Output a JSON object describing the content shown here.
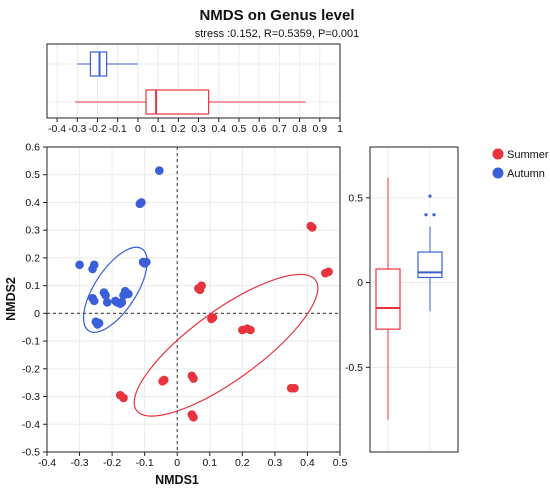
{
  "chart_data": {
    "type": "scatter",
    "title": "NMDS on Genus level",
    "subtitle": "stress :0.152, R=0.5359, P=0.001",
    "xlabel": "NMDS1",
    "ylabel": "NMDS2",
    "xlim": [
      -0.4,
      0.5
    ],
    "ylim": [
      -0.5,
      0.6
    ],
    "x_ticks": [
      "-0.4",
      "-0.3",
      "-0.2",
      "-0.1",
      "0",
      "0.1",
      "0.2",
      "0.3",
      "0.4",
      "0.5"
    ],
    "y_ticks": [
      "-0.5",
      "-0.4",
      "-0.3",
      "-0.2",
      "-0.1",
      "0",
      "0.1",
      "0.2",
      "0.3",
      "0.4",
      "0.5",
      "0.6"
    ],
    "legend_position": "top-right",
    "series": [
      {
        "name": "Summer",
        "color": "#e8333f",
        "points": [
          [
            0.41,
            0.315
          ],
          [
            0.415,
            0.31
          ],
          [
            0.455,
            0.145
          ],
          [
            0.465,
            0.15
          ],
          [
            0.075,
            0.1
          ],
          [
            0.07,
            0.085
          ],
          [
            0.065,
            0.09
          ],
          [
            0.11,
            -0.015
          ],
          [
            0.105,
            -0.02
          ],
          [
            0.2,
            -0.06
          ],
          [
            0.225,
            -0.06
          ],
          [
            0.215,
            -0.055
          ],
          [
            -0.04,
            -0.24
          ],
          [
            -0.045,
            -0.245
          ],
          [
            0.045,
            -0.225
          ],
          [
            0.05,
            -0.235
          ],
          [
            0.35,
            -0.27
          ],
          [
            0.36,
            -0.27
          ],
          [
            -0.175,
            -0.295
          ],
          [
            -0.165,
            -0.305
          ],
          [
            0.045,
            -0.365
          ],
          [
            0.05,
            -0.375
          ]
        ]
      },
      {
        "name": "Autumn",
        "color": "#3b5fd8",
        "points": [
          [
            -0.055,
            0.515
          ],
          [
            -0.115,
            0.395
          ],
          [
            -0.11,
            0.4
          ],
          [
            -0.105,
            0.185
          ],
          [
            -0.095,
            0.185
          ],
          [
            -0.1,
            0.18
          ],
          [
            -0.3,
            0.175
          ],
          [
            -0.255,
            0.175
          ],
          [
            -0.26,
            0.16
          ],
          [
            -0.16,
            0.08
          ],
          [
            -0.165,
            0.065
          ],
          [
            -0.15,
            0.07
          ],
          [
            -0.225,
            0.075
          ],
          [
            -0.22,
            0.065
          ],
          [
            -0.26,
            0.055
          ],
          [
            -0.255,
            0.045
          ],
          [
            -0.215,
            0.04
          ],
          [
            -0.19,
            0.045
          ],
          [
            -0.185,
            0.04
          ],
          [
            -0.17,
            0.04
          ],
          [
            -0.175,
            0.035
          ],
          [
            -0.25,
            -0.03
          ],
          [
            -0.245,
            -0.04
          ],
          [
            -0.24,
            -0.035
          ]
        ]
      }
    ],
    "ellipses": [
      {
        "series": "Summer",
        "center": [
          0.15,
          -0.115
        ],
        "semi_axes": [
          0.34,
          0.125
        ],
        "angle_deg": 36
      },
      {
        "series": "Autumn",
        "center": [
          -0.19,
          0.085
        ],
        "semi_axes": [
          0.15,
          0.075
        ],
        "angle_deg": 57
      }
    ],
    "top_boxplot": {
      "axis_ticks": [
        "-0.4",
        "-0.3",
        "-0.2",
        "-0.1",
        "0",
        "0.1",
        "0.2",
        "0.3",
        "0.4",
        "0.5",
        "0.6",
        "0.7",
        "0.8",
        "0.9",
        "1"
      ],
      "xlim": [
        -0.45,
        1.0
      ],
      "boxes": [
        {
          "series": "Autumn",
          "color": "#3b5fd8",
          "whisker_low": -0.3,
          "q1": -0.235,
          "median": -0.19,
          "q3": -0.155,
          "whisker_high": 0.0
        },
        {
          "series": "Summer",
          "color": "#e8333f",
          "whisker_low": -0.31,
          "q1": 0.04,
          "median": 0.09,
          "q3": 0.35,
          "whisker_high": 0.83
        }
      ]
    },
    "right_boxplot": {
      "axis_ticks": [
        "-0.5",
        "0",
        "0.5"
      ],
      "ylim": [
        -1.0,
        0.8
      ],
      "boxes": [
        {
          "series": "Summer",
          "color": "#e8333f",
          "whisker_low": -0.81,
          "q1": -0.275,
          "median": -0.15,
          "q3": 0.08,
          "whisker_high": 0.62,
          "outliers": []
        },
        {
          "series": "Autumn",
          "color": "#3b5fd8",
          "whisker_low": -0.17,
          "q1": 0.03,
          "median": 0.06,
          "q3": 0.18,
          "whisker_high": 0.33,
          "outliers": [
            0.51,
            0.4,
            0.4
          ]
        }
      ]
    }
  }
}
